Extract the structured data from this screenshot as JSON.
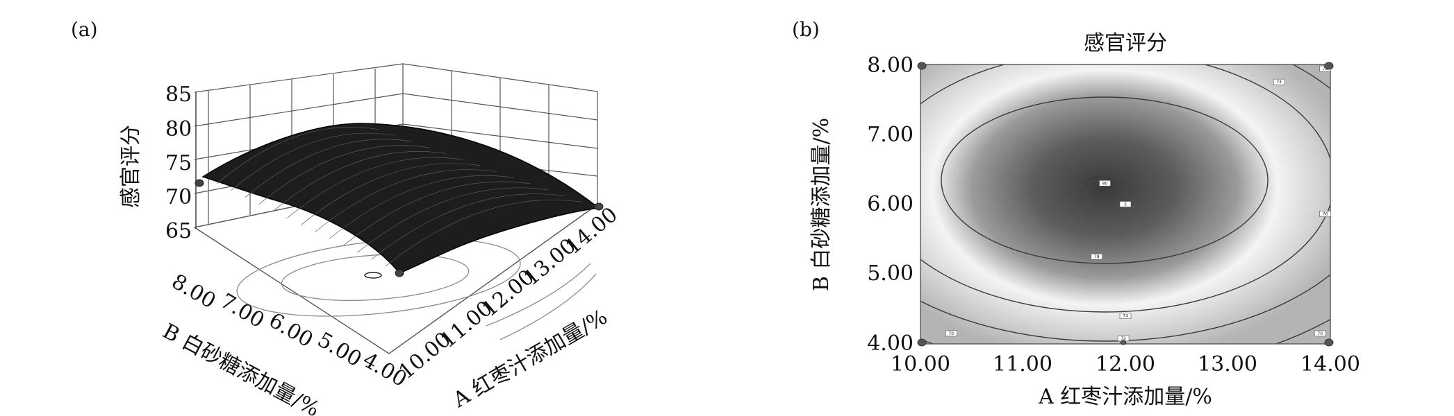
{
  "panel_a": {
    "label": "(a)"
  },
  "panel_b": {
    "label": "(b)"
  },
  "chart_data": [
    {
      "type": "surface",
      "zlabel": "感官评分",
      "xlabel": "A 红枣汁添加量/%",
      "ylabel": "B 白砂糖添加量/%",
      "x_ticks": [
        "10.00",
        "11.00",
        "12.00",
        "13.00",
        "14.00"
      ],
      "y_ticks": [
        "4.00",
        "5.00",
        "6.00",
        "7.00",
        "8.00"
      ],
      "z_ticks": [
        "65",
        "70",
        "75",
        "80",
        "85"
      ],
      "xlim": [
        10,
        14
      ],
      "ylim": [
        4,
        8
      ],
      "zlim": [
        65,
        85
      ],
      "optimum": {
        "x": 11.8,
        "y": 6.3,
        "z": 80
      },
      "design_points": [
        {
          "x": 10,
          "y": 8,
          "z": 72.5
        },
        {
          "x": 14,
          "y": 4,
          "z": 71
        },
        {
          "x": 10,
          "y": 4,
          "z": 67
        }
      ]
    },
    {
      "type": "contour",
      "title": "感官评分",
      "xlabel": "A 红枣汁添加量/%",
      "ylabel": "B 白砂糖添加量/%",
      "x_ticks": [
        "10.00",
        "11.00",
        "12.00",
        "13.00",
        "14.00"
      ],
      "y_ticks": [
        "4.00",
        "5.00",
        "6.00",
        "7.00",
        "8.00"
      ],
      "xlim": [
        10,
        14
      ],
      "ylim": [
        4,
        8
      ],
      "contour_levels": [
        70,
        72,
        74,
        76,
        78,
        80
      ],
      "contour_labels": [
        {
          "text": "80",
          "x": 11.8,
          "y": 6.3
        },
        {
          "text": "78",
          "x": 11.72,
          "y": 5.25
        },
        {
          "text": "76",
          "x": 13.95,
          "y": 5.86
        },
        {
          "text": "74",
          "x": 13.5,
          "y": 7.75
        },
        {
          "text": "74",
          "x": 12.0,
          "y": 4.4
        },
        {
          "text": "72",
          "x": 13.95,
          "y": 7.94
        },
        {
          "text": "72",
          "x": 11.98,
          "y": 4.08
        },
        {
          "text": "70",
          "x": 10.3,
          "y": 4.15
        },
        {
          "text": "70",
          "x": 13.9,
          "y": 4.15
        },
        {
          "text": "5",
          "x": 12.0,
          "y": 6.0
        }
      ],
      "design_points": [
        {
          "x": 10,
          "y": 8
        },
        {
          "x": 14,
          "y": 8
        },
        {
          "x": 10,
          "y": 4
        },
        {
          "x": 14,
          "y": 4
        }
      ]
    }
  ]
}
